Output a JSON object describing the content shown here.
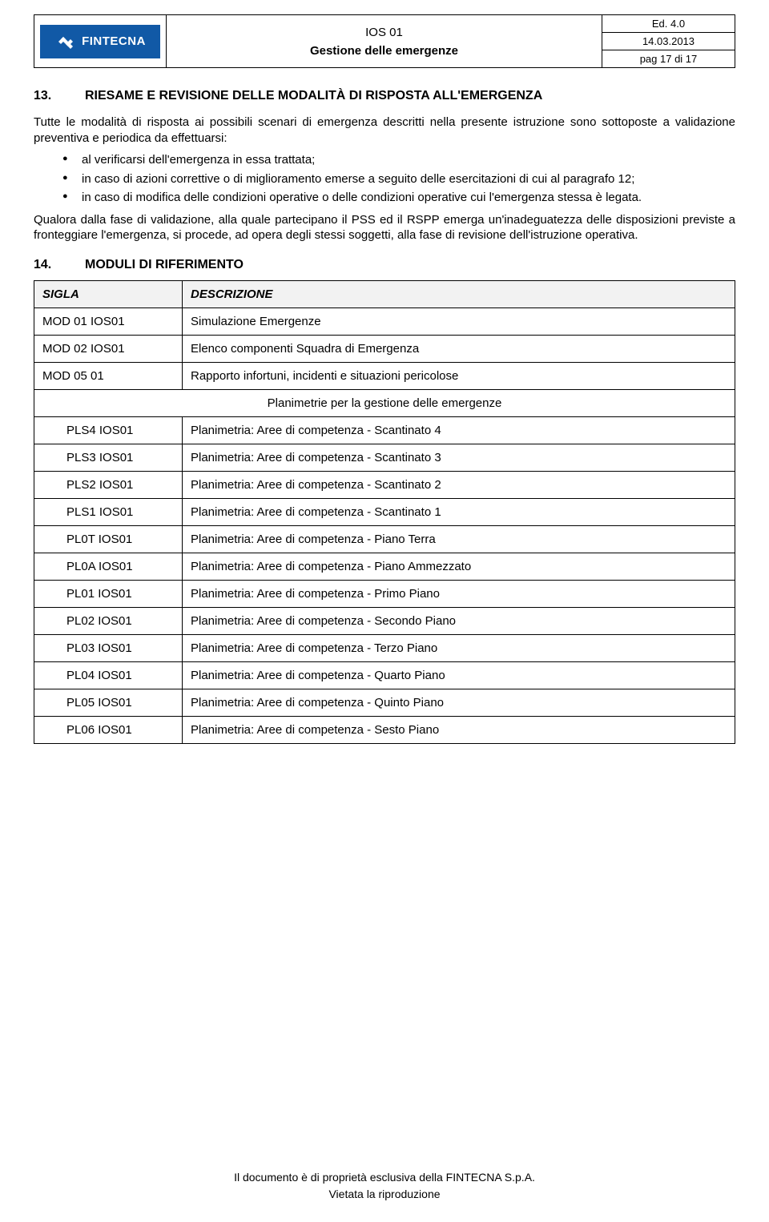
{
  "header": {
    "logo_text": "FINTECNA",
    "doc_code": "IOS 01",
    "doc_title": "Gestione delle emergenze",
    "edition": "Ed. 4.0",
    "date": "14.03.2013",
    "page": "pag 17 di 17"
  },
  "section13": {
    "num": "13.",
    "title": "RIESAME E REVISIONE DELLE MODALITÀ DI RISPOSTA ALL'EMERGENZA",
    "intro": "Tutte le modalità di risposta ai possibili scenari di emergenza descritti nella presente istruzione sono sottoposte a validazione preventiva e periodica da effettuarsi:",
    "bullets": [
      "al verificarsi dell'emergenza in essa trattata;",
      "in caso di azioni correttive o di miglioramento emerse a seguito delle esercitazioni di cui al paragrafo 12;",
      "in caso di modifica delle condizioni operative o delle condizioni operative cui l'emergenza stessa è legata."
    ],
    "outro": "Qualora dalla fase di validazione, alla quale partecipano il PSS ed il RSPP emerga un'inadeguatezza delle disposizioni previste a fronteggiare l'emergenza, si procede, ad opera degli stessi soggetti, alla fase di revisione dell'istruzione operativa."
  },
  "section14": {
    "num": "14.",
    "title": "MODULI DI RIFERIMENTO"
  },
  "table": {
    "col_sigla": "SIGLA",
    "col_descr": "DESCRIZIONE",
    "rows_top": [
      {
        "sigla": "MOD 01 IOS01",
        "descr": "Simulazione Emergenze"
      },
      {
        "sigla": "MOD 02 IOS01",
        "descr": "Elenco componenti Squadra di Emergenza"
      },
      {
        "sigla": "MOD 05 01",
        "descr": "Rapporto infortuni, incidenti e situazioni pericolose"
      }
    ],
    "subhead": "Planimetrie per la gestione delle emergenze",
    "rows_plan": [
      {
        "sigla": "PLS4 IOS01",
        "descr": "Planimetria: Aree di competenza - Scantinato 4"
      },
      {
        "sigla": "PLS3 IOS01",
        "descr": "Planimetria: Aree di competenza - Scantinato 3"
      },
      {
        "sigla": "PLS2 IOS01",
        "descr": "Planimetria: Aree di competenza - Scantinato 2"
      },
      {
        "sigla": "PLS1 IOS01",
        "descr": "Planimetria: Aree di competenza - Scantinato 1"
      },
      {
        "sigla": "PL0T IOS01",
        "descr": "Planimetria: Aree di competenza - Piano Terra"
      },
      {
        "sigla": "PL0A IOS01",
        "descr": "Planimetria: Aree di competenza - Piano Ammezzato"
      },
      {
        "sigla": "PL01 IOS01",
        "descr": "Planimetria: Aree di competenza - Primo Piano"
      },
      {
        "sigla": "PL02 IOS01",
        "descr": "Planimetria: Aree di competenza - Secondo Piano"
      },
      {
        "sigla": "PL03 IOS01",
        "descr": "Planimetria: Aree di competenza - Terzo Piano"
      },
      {
        "sigla": "PL04 IOS01",
        "descr": "Planimetria: Aree di competenza - Quarto Piano"
      },
      {
        "sigla": "PL05 IOS01",
        "descr": "Planimetria: Aree di competenza - Quinto Piano"
      },
      {
        "sigla": "PL06 IOS01",
        "descr": "Planimetria: Aree di competenza - Sesto Piano"
      }
    ]
  },
  "footer": {
    "line1": "Il documento è di proprietà esclusiva della FINTECNA S.p.A.",
    "line2": "Vietata la riproduzione"
  },
  "colors": {
    "logo_bg": "#1159a6",
    "header_row_bg": "#f2f2f2",
    "border": "#000000",
    "text": "#000000",
    "page_bg": "#ffffff"
  }
}
